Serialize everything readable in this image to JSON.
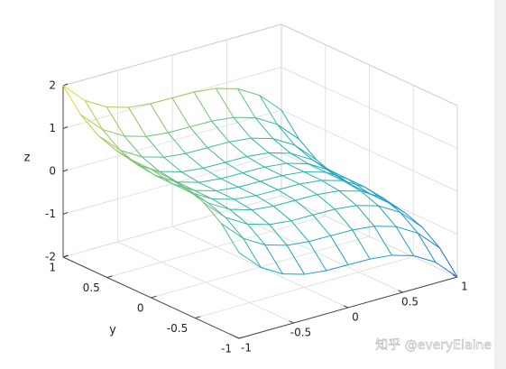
{
  "chart_data": {
    "type": "mesh",
    "x": [
      -1,
      -0.8,
      -0.6,
      -0.4,
      -0.2,
      0,
      0.2,
      0.4,
      0.6,
      0.8,
      1
    ],
    "y": [
      -1,
      -0.8,
      -0.6,
      -0.4,
      -0.2,
      0,
      0.2,
      0.4,
      0.6,
      0.8,
      1
    ],
    "z": [
      [
        0,
        -0.488,
        -0.784,
        -0.936,
        -0.992,
        -1,
        -1.008,
        -1.064,
        -1.216,
        -1.512,
        -2
      ],
      [
        0.488,
        0,
        -0.296,
        -0.448,
        -0.504,
        -0.512,
        -0.52,
        -0.576,
        -0.728,
        -1.024,
        -1.512
      ],
      [
        0.784,
        0.296,
        0,
        -0.152,
        -0.208,
        -0.216,
        -0.224,
        -0.28,
        -0.432,
        -0.728,
        -1.216
      ],
      [
        0.936,
        0.448,
        0.152,
        0,
        -0.056,
        -0.064,
        -0.072,
        -0.128,
        -0.28,
        -0.576,
        -1.064
      ],
      [
        0.992,
        0.504,
        0.208,
        0.056,
        0,
        -0.008,
        -0.016,
        -0.072,
        -0.224,
        -0.52,
        -1.008
      ],
      [
        1,
        0.512,
        0.216,
        0.064,
        0.008,
        0,
        -0.008,
        -0.064,
        -0.216,
        -0.512,
        -1
      ],
      [
        1.008,
        0.52,
        0.224,
        0.072,
        0.016,
        0.008,
        0,
        -0.056,
        -0.208,
        -0.504,
        -0.992
      ],
      [
        1.064,
        0.576,
        0.28,
        0.128,
        0.072,
        0.064,
        0.056,
        0,
        -0.152,
        -0.448,
        -0.936
      ],
      [
        1.216,
        0.728,
        0.432,
        0.28,
        0.224,
        0.216,
        0.208,
        0.152,
        0,
        -0.296,
        -0.784
      ],
      [
        1.512,
        1.024,
        0.728,
        0.576,
        0.52,
        0.512,
        0.504,
        0.448,
        0.296,
        0,
        -0.488
      ],
      [
        2,
        1.512,
        1.216,
        1.064,
        1.008,
        1,
        0.992,
        0.936,
        0.784,
        0.488,
        0
      ]
    ],
    "xlim": [
      -1,
      1
    ],
    "ylim": [
      -1,
      1
    ],
    "zlim": [
      -2,
      2
    ],
    "xticks": [
      -1,
      -0.5,
      0,
      0.5,
      1
    ],
    "yticks": [
      -1,
      -0.5,
      0,
      0.5,
      1
    ],
    "zticks": [
      -2,
      -1,
      0,
      1,
      2
    ],
    "ylabel": "y",
    "zlabel": "z",
    "grid": true,
    "colormap": [
      "#2a5ad0",
      "#1d9ad0",
      "#2cb5a8",
      "#9cc858",
      "#f2dc34"
    ]
  },
  "watermark": "知乎 @everyElaine"
}
